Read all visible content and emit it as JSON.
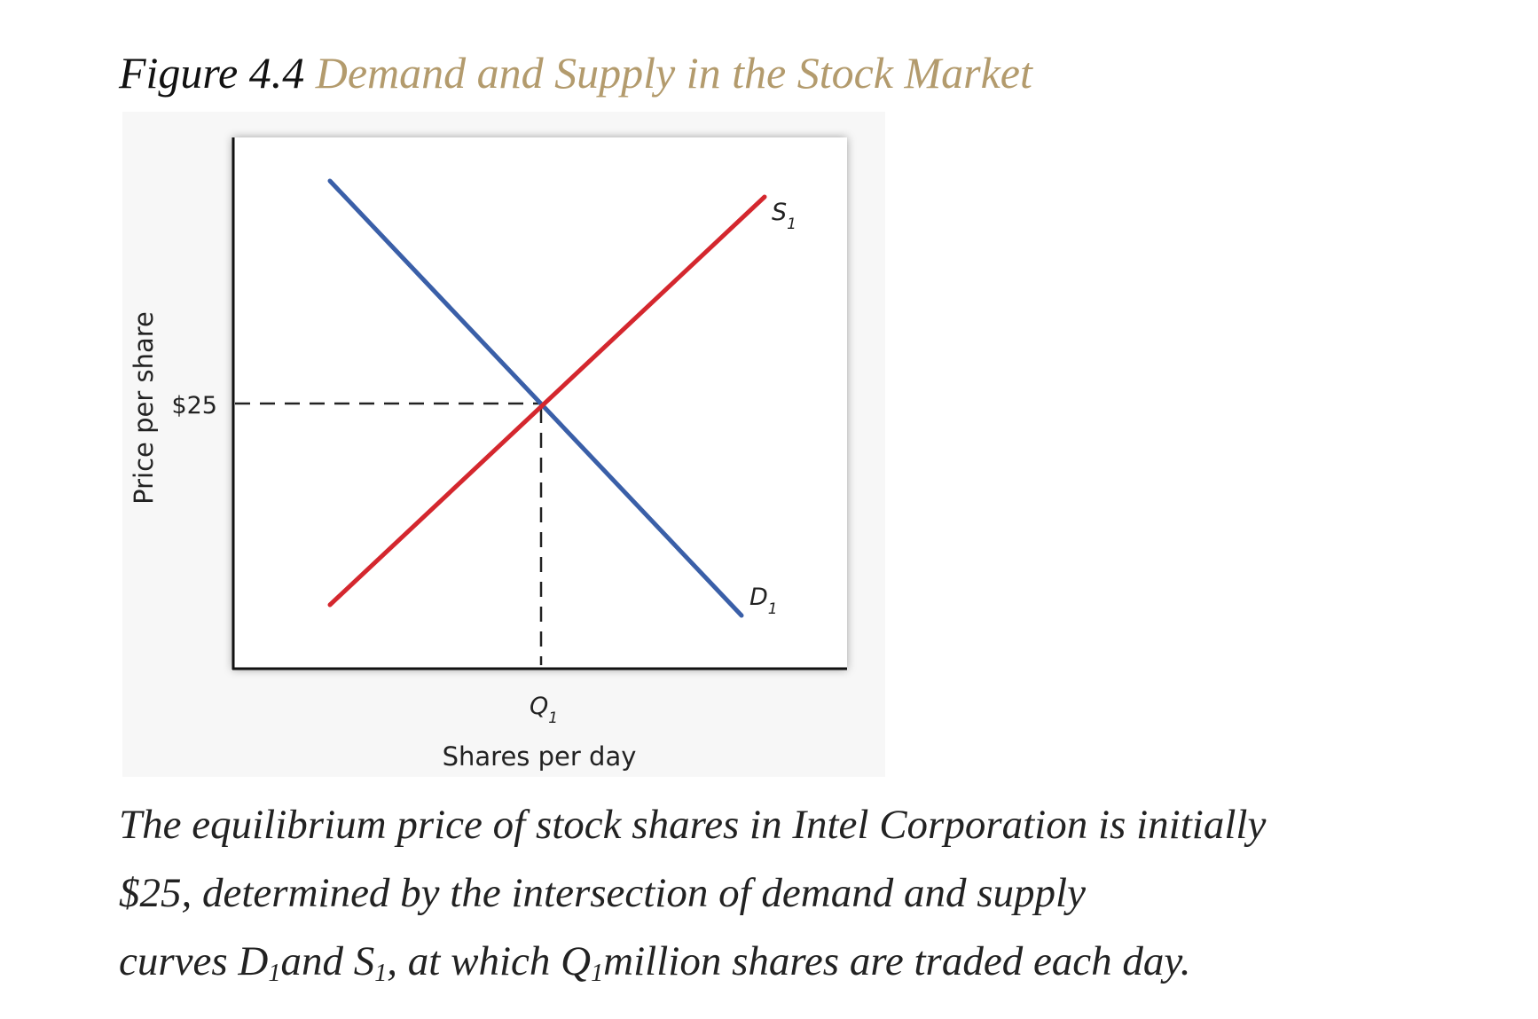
{
  "figure": {
    "number": "Figure 4.4",
    "name": "Demand and Supply in the Stock Market"
  },
  "chart_data": {
    "type": "line",
    "xlabel": "Shares per day",
    "ylabel": "Price per share",
    "x_tick_label": {
      "main": "Q",
      "sub": "1"
    },
    "y_tick_label": "$25",
    "grid": false,
    "series": [
      {
        "name": "D",
        "sub": "1",
        "color": "#3a5fa8"
      },
      {
        "name": "S",
        "sub": "1",
        "color": "#d4272e"
      }
    ],
    "equilibrium": {
      "price": "$25",
      "quantity": "Q1"
    }
  },
  "caption": {
    "line1": "The equilibrium price of stock shares in Intel Corporation is initially",
    "line2": "$25, determined by the intersection of demand and supply",
    "line3a": "curves D",
    "line3b": "1",
    "line3c": "and S",
    "line3d": "1",
    "line3e": ", at which Q",
    "line3f": "1",
    "line3g": "million shares are traded each day."
  },
  "colors": {
    "title_accent": "#b39b6d",
    "demand": "#3a5fa8",
    "supply": "#d4272e"
  }
}
